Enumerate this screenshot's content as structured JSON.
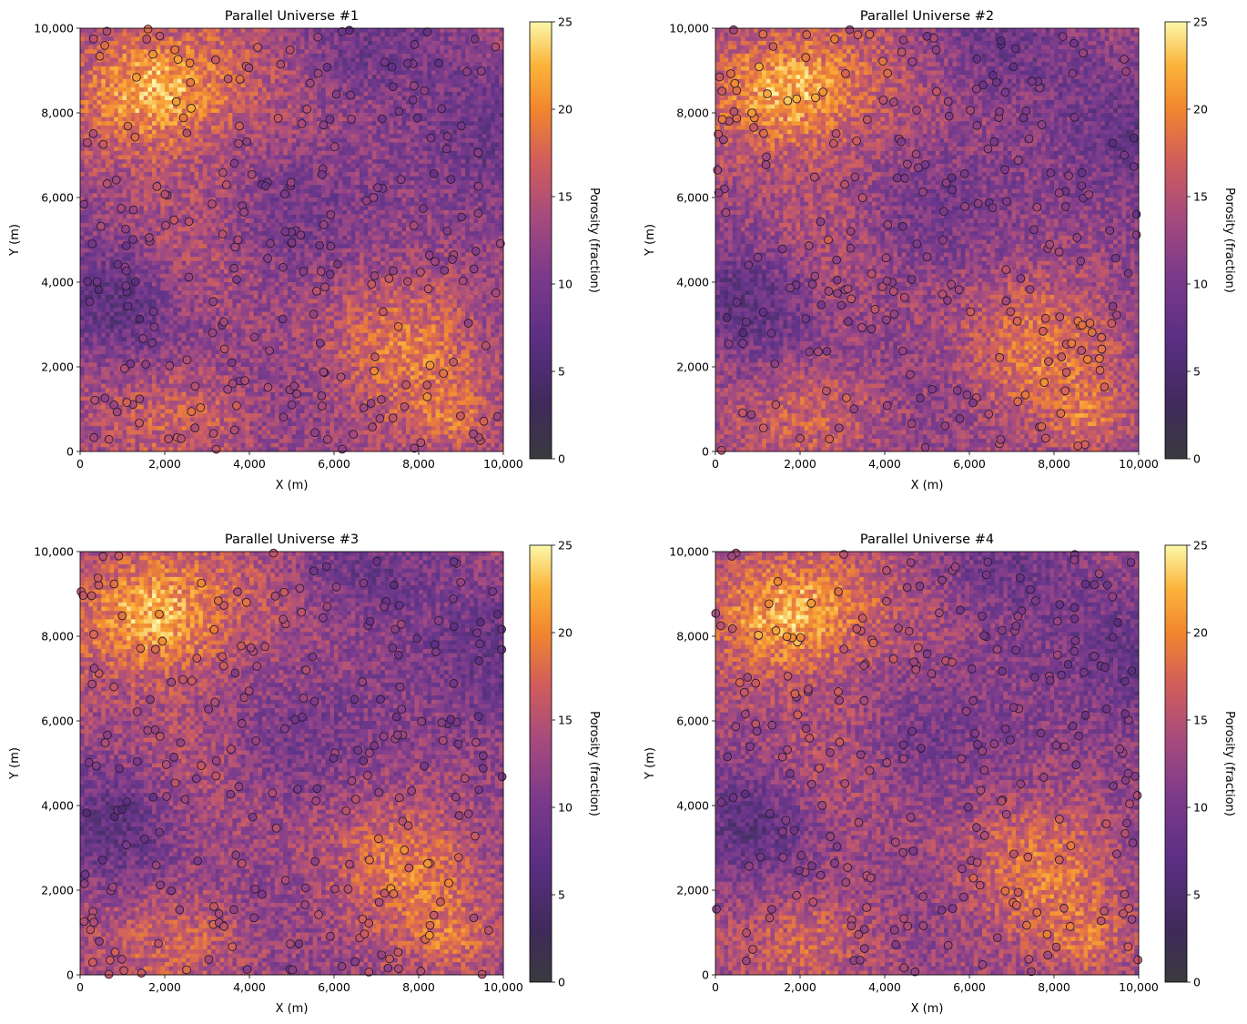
{
  "chart_data": [
    {
      "type": "heatmap",
      "title": "Parallel Universe #1",
      "xlabel": "X (m)",
      "ylabel": "Y (m)",
      "xlim": [
        0,
        10000
      ],
      "ylim": [
        0,
        10000
      ],
      "xticks": [
        "0",
        "2,000",
        "4,000",
        "6,000",
        "8,000",
        "10,000"
      ],
      "yticks": [
        "0",
        "2,000",
        "4,000",
        "6,000",
        "8,000",
        "10,000"
      ],
      "colorbar": {
        "label": "Porosity (fraction)",
        "range": [
          0,
          25
        ],
        "ticks": [
          "0",
          "5",
          "10",
          "15",
          "20",
          "25"
        ],
        "colormap": "inferno"
      },
      "grid": false,
      "seed": 11
    },
    {
      "type": "heatmap",
      "title": "Parallel Universe #2",
      "xlabel": "X (m)",
      "ylabel": "Y (m)",
      "xlim": [
        0,
        10000
      ],
      "ylim": [
        0,
        10000
      ],
      "xticks": [
        "0",
        "2,000",
        "4,000",
        "6,000",
        "8,000",
        "10,000"
      ],
      "yticks": [
        "0",
        "2,000",
        "4,000",
        "6,000",
        "8,000",
        "10,000"
      ],
      "colorbar": {
        "label": "Porosity (fraction)",
        "range": [
          0,
          25
        ],
        "ticks": [
          "0",
          "5",
          "10",
          "15",
          "20",
          "25"
        ],
        "colormap": "inferno"
      },
      "grid": false,
      "seed": 23
    },
    {
      "type": "heatmap",
      "title": "Parallel Universe #3",
      "xlabel": "X (m)",
      "ylabel": "Y (m)",
      "xlim": [
        0,
        10000
      ],
      "ylim": [
        0,
        10000
      ],
      "xticks": [
        "0",
        "2,000",
        "4,000",
        "6,000",
        "8,000",
        "10,000"
      ],
      "yticks": [
        "0",
        "2,000",
        "4,000",
        "6,000",
        "8,000",
        "10,000"
      ],
      "colorbar": {
        "label": "Porosity (fraction)",
        "range": [
          0,
          25
        ],
        "ticks": [
          "0",
          "5",
          "10",
          "15",
          "20",
          "25"
        ],
        "colormap": "inferno"
      },
      "grid": false,
      "seed": 37
    },
    {
      "type": "heatmap",
      "title": "Parallel Universe #4",
      "xlabel": "X (m)",
      "ylabel": "Y (m)",
      "xlim": [
        0,
        10000
      ],
      "ylim": [
        0,
        10000
      ],
      "xticks": [
        "0",
        "2,000",
        "4,000",
        "6,000",
        "8,000",
        "10,000"
      ],
      "yticks": [
        "0",
        "2,000",
        "4,000",
        "6,000",
        "8,000",
        "10,000"
      ],
      "colorbar": {
        "label": "Porosity (fraction)",
        "range": [
          0,
          25
        ],
        "ticks": [
          "0",
          "5",
          "10",
          "15",
          "20",
          "25"
        ],
        "colormap": "inferno"
      },
      "grid": false,
      "seed": 53
    }
  ]
}
